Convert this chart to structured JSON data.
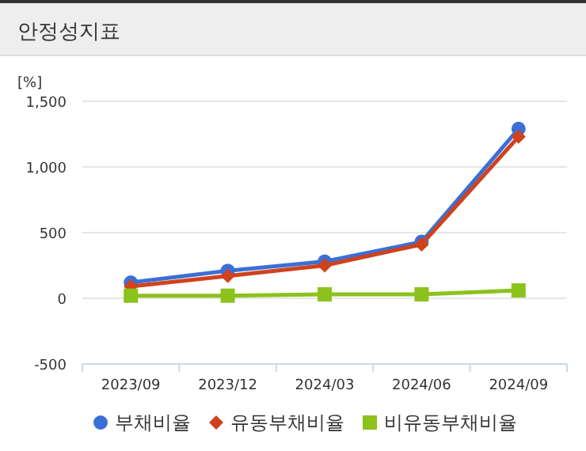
{
  "chart_data": {
    "type": "line",
    "title": "안정성지표",
    "ylabel": "[%]",
    "categories": [
      "2023/09",
      "2023/12",
      "2024/03",
      "2024/06",
      "2024/09"
    ],
    "series": [
      {
        "name": "부채비율",
        "color": "#3b6fd6",
        "marker": "circle",
        "values": [
          120,
          210,
          280,
          430,
          1290
        ]
      },
      {
        "name": "유동부채비율",
        "color": "#d0421c",
        "marker": "diamond",
        "values": [
          90,
          170,
          250,
          410,
          1230
        ]
      },
      {
        "name": "비유동부채비율",
        "color": "#8cc21c",
        "marker": "square",
        "values": [
          20,
          20,
          30,
          30,
          60
        ]
      }
    ],
    "ylim": [
      -500,
      1500
    ],
    "yticks": [
      {
        "value": -500,
        "label": "-500"
      },
      0,
      {
        "value": 500,
        "label": "500"
      },
      {
        "value": 1000,
        "label": "1,000"
      },
      {
        "value": 1500,
        "label": "1,500"
      }
    ],
    "grid": "y",
    "legend": "bottom"
  }
}
